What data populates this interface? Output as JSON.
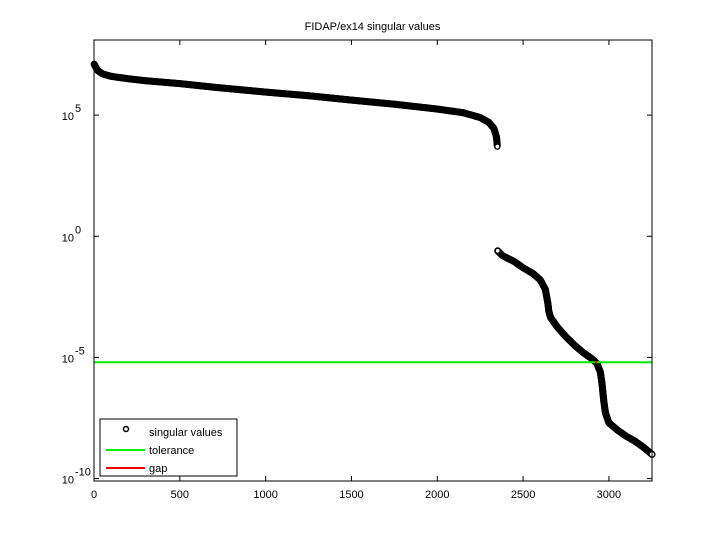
{
  "chart_data": {
    "type": "scatter",
    "title": "FIDAP/ex14 singular values",
    "xlabel": "",
    "ylabel": "",
    "yscale": "log",
    "xlim": [
      0,
      3251
    ],
    "ylim_exponents": [
      -10.1,
      8.1
    ],
    "grid": false,
    "legend_position": "lower-left",
    "x_ticks": [
      0,
      500,
      1000,
      1500,
      2000,
      2500,
      3000
    ],
    "y_ticks": [
      {
        "base": "10",
        "exp": "5",
        "value_exponent": 5
      },
      {
        "base": "10",
        "exp": "0",
        "value_exponent": 0
      },
      {
        "base": "10",
        "exp": "-5",
        "value_exponent": -5
      },
      {
        "base": "10",
        "exp": "-10",
        "value_exponent": -10
      }
    ],
    "series": [
      {
        "name": "singular values",
        "marker": "circle",
        "color": "#000000",
        "points_log10": [
          [
            1,
            7.1
          ],
          [
            20,
            6.85
          ],
          [
            50,
            6.7
          ],
          [
            100,
            6.6
          ],
          [
            200,
            6.5
          ],
          [
            300,
            6.42
          ],
          [
            500,
            6.3
          ],
          [
            700,
            6.15
          ],
          [
            1000,
            5.95
          ],
          [
            1250,
            5.8
          ],
          [
            1500,
            5.62
          ],
          [
            1750,
            5.45
          ],
          [
            2000,
            5.25
          ],
          [
            2150,
            5.1
          ],
          [
            2250,
            4.9
          ],
          [
            2300,
            4.7
          ],
          [
            2330,
            4.45
          ],
          [
            2345,
            4.1
          ],
          [
            2350,
            3.7
          ],
          [
            2352,
            -0.6
          ],
          [
            2380,
            -0.8
          ],
          [
            2450,
            -1.05
          ],
          [
            2500,
            -1.3
          ],
          [
            2560,
            -1.55
          ],
          [
            2600,
            -1.8
          ],
          [
            2630,
            -2.2
          ],
          [
            2645,
            -2.8
          ],
          [
            2650,
            -3.1
          ],
          [
            2660,
            -3.35
          ],
          [
            2700,
            -3.75
          ],
          [
            2750,
            -4.15
          ],
          [
            2800,
            -4.5
          ],
          [
            2850,
            -4.8
          ],
          [
            2900,
            -5.05
          ],
          [
            2930,
            -5.25
          ],
          [
            2950,
            -5.6
          ],
          [
            2960,
            -6.1
          ],
          [
            2970,
            -6.8
          ],
          [
            2980,
            -7.3
          ],
          [
            3000,
            -7.7
          ],
          [
            3050,
            -8.0
          ],
          [
            3100,
            -8.25
          ],
          [
            3150,
            -8.45
          ],
          [
            3200,
            -8.7
          ],
          [
            3251,
            -9.0
          ]
        ]
      },
      {
        "name": "tolerance",
        "type": "hline",
        "color": "#00ee00",
        "value_log10": -5.2
      },
      {
        "name": "gap",
        "type": "marker",
        "color": "#ee0000",
        "x": 2925,
        "value_log10": -5.2
      }
    ]
  },
  "legend": {
    "items": [
      {
        "label": "singular values",
        "color": "#000000",
        "kind": "marker"
      },
      {
        "label": "tolerance",
        "color": "#00ee00",
        "kind": "line"
      },
      {
        "label": "gap",
        "color": "#ee0000",
        "kind": "line"
      }
    ]
  }
}
